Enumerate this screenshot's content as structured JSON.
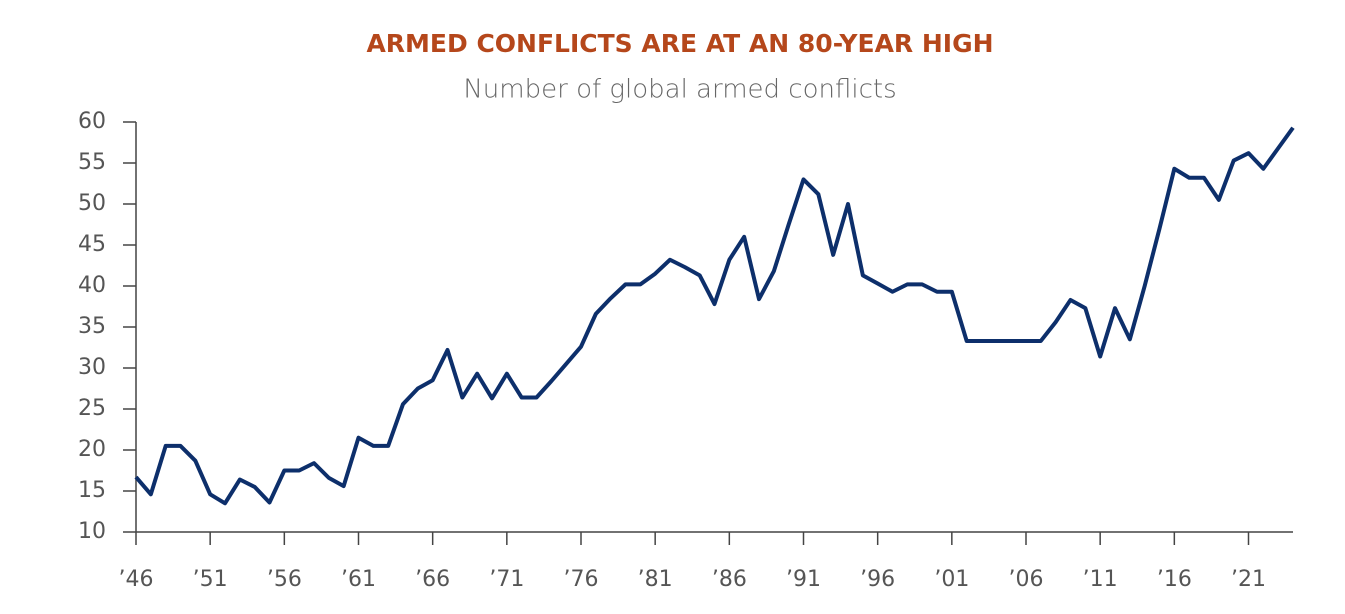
{
  "chart_data": {
    "type": "line",
    "title": "ARMED CONFLICTS ARE AT AN 80-YEAR HIGH",
    "subtitle": "Number of global armed conflicts",
    "x": [
      1946,
      1947,
      1948,
      1949,
      1950,
      1951,
      1952,
      1953,
      1954,
      1955,
      1956,
      1957,
      1958,
      1959,
      1960,
      1961,
      1962,
      1963,
      1964,
      1965,
      1966,
      1967,
      1968,
      1969,
      1970,
      1971,
      1972,
      1973,
      1974,
      1975,
      1976,
      1977,
      1978,
      1979,
      1980,
      1981,
      1982,
      1983,
      1984,
      1985,
      1986,
      1987,
      1988,
      1989,
      1990,
      1991,
      1992,
      1993,
      1994,
      1995,
      1996,
      1997,
      1998,
      1999,
      2000,
      2001,
      2002,
      2003,
      2004,
      2005,
      2006,
      2007,
      2008,
      2009,
      2010,
      2011,
      2012,
      2013,
      2014,
      2015,
      2016,
      2017,
      2018,
      2019,
      2020,
      2021,
      2022,
      2023,
      2024
    ],
    "series": [
      {
        "name": "Armed conflicts",
        "color": "#0d2f6b",
        "values": [
          16.7,
          14.6,
          20.5,
          20.5,
          18.7,
          14.6,
          13.5,
          16.4,
          15.5,
          13.6,
          17.5,
          17.5,
          18.4,
          16.6,
          15.6,
          21.5,
          20.5,
          20.5,
          25.6,
          27.5,
          28.5,
          32.2,
          26.4,
          29.3,
          26.3,
          29.3,
          26.4,
          26.4,
          28.4,
          30.5,
          32.6,
          36.6,
          38.5,
          40.2,
          40.2,
          41.5,
          43.2,
          42.3,
          41.3,
          37.8,
          43.2,
          46.0,
          38.4,
          41.8,
          47.5,
          53.0,
          51.2,
          43.8,
          50.0,
          41.3,
          40.3,
          39.3,
          40.2,
          40.2,
          39.3,
          39.3,
          33.3,
          33.3,
          33.3,
          33.3,
          33.3,
          33.3,
          35.6,
          38.3,
          37.3,
          31.4,
          37.3,
          33.5,
          40.0,
          47.0,
          54.3,
          53.2,
          53.2,
          50.5,
          55.3,
          56.2,
          54.3,
          56.8,
          59.3
        ]
      }
    ],
    "xlim": [
      1946,
      2024
    ],
    "xticks": [
      {
        "value": 1946,
        "label": "’46"
      },
      {
        "value": 1951,
        "label": "’51"
      },
      {
        "value": 1956,
        "label": "’56"
      },
      {
        "value": 1961,
        "label": "’61"
      },
      {
        "value": 1966,
        "label": "’66"
      },
      {
        "value": 1971,
        "label": "’71"
      },
      {
        "value": 1976,
        "label": "’76"
      },
      {
        "value": 1981,
        "label": "’81"
      },
      {
        "value": 1986,
        "label": "’86"
      },
      {
        "value": 1991,
        "label": "’91"
      },
      {
        "value": 1996,
        "label": "’96"
      },
      {
        "value": 2001,
        "label": "’01"
      },
      {
        "value": 2006,
        "label": "’06"
      },
      {
        "value": 2011,
        "label": "’11"
      },
      {
        "value": 2016,
        "label": "’16"
      },
      {
        "value": 2021,
        "label": "’21"
      }
    ],
    "ylim": [
      10,
      60
    ],
    "yticks": [
      10,
      15,
      20,
      25,
      30,
      35,
      40,
      45,
      50,
      55,
      60
    ]
  }
}
